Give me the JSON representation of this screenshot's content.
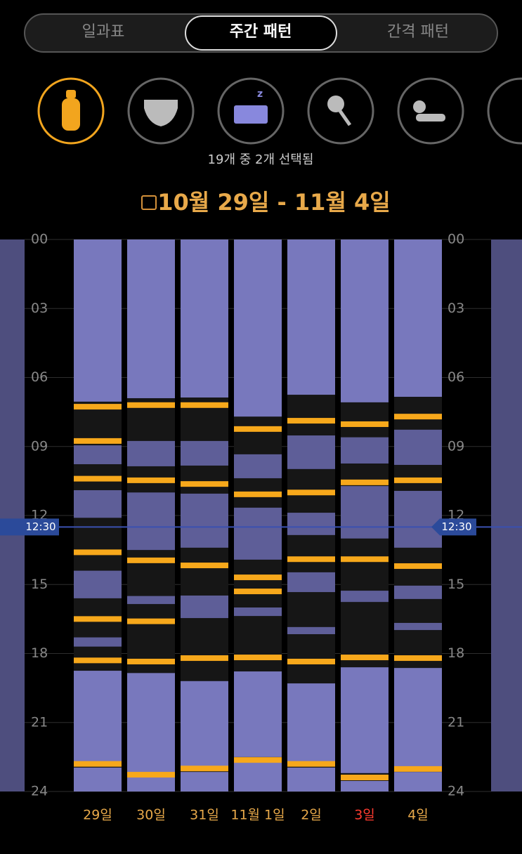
{
  "tabs": {
    "items": [
      "일과표",
      "주간 패턴",
      "간격 패턴"
    ],
    "selected": 1
  },
  "selection_note": "19개 중 2개 선택됨",
  "date_range": "10월 29일 - 11월 4일",
  "chart_data": {
    "type": "bar",
    "ylim": [
      0,
      24
    ],
    "yticks": [
      {
        "value": 0,
        "label": "00"
      },
      {
        "value": 3,
        "label": "03"
      },
      {
        "value": 6,
        "label": "06"
      },
      {
        "value": 9,
        "label": "09"
      },
      {
        "value": 12,
        "label": "12"
      },
      {
        "value": 15,
        "label": "15"
      },
      {
        "value": 18,
        "label": "18"
      },
      {
        "value": 21,
        "label": "21"
      },
      {
        "value": 24,
        "label": "24"
      }
    ],
    "grid": true,
    "colors": {
      "sleep": "#7878bd",
      "nap": "#5e5e98",
      "feed": "#f7a81b",
      "background": "#161616"
    },
    "current_time": {
      "value": 12.5,
      "label": "12:30"
    },
    "days": [
      {
        "label": "29일",
        "color": "#e8a94a",
        "sleeps": [
          [
            0,
            7.05
          ],
          [
            18.75,
            22.8
          ],
          [
            22.96,
            24
          ]
        ],
        "naps": [
          [
            8.95,
            9.77
          ],
          [
            10.9,
            12.1
          ],
          [
            14.4,
            15.6
          ],
          [
            17.3,
            17.7
          ]
        ],
        "feeds": [
          7.27,
          8.76,
          10.4,
          13.6,
          16.5,
          18.3,
          22.8
        ]
      },
      {
        "label": "30일",
        "color": "#e8a94a",
        "sleeps": [
          [
            0,
            6.9
          ],
          [
            18.85,
            23.2
          ],
          [
            23.35,
            24
          ]
        ],
        "naps": [
          [
            8.76,
            9.86
          ],
          [
            11,
            13.5
          ],
          [
            15.5,
            15.85
          ]
        ],
        "feeds": [
          7.2,
          10.47,
          13.95,
          16.6,
          18.35,
          23.27
        ]
      },
      {
        "label": "31일",
        "color": "#e8a94a",
        "sleeps": [
          [
            0,
            6.87
          ],
          [
            19.2,
            22.93
          ],
          [
            23.15,
            24
          ]
        ],
        "naps": [
          [
            8.76,
            9.83
          ],
          [
            11.05,
            13.4
          ],
          [
            15.48,
            16.46
          ]
        ],
        "feeds": [
          7.2,
          10.63,
          14.17,
          18.2,
          23
        ]
      },
      {
        "label": "11월 1일",
        "color": "#e8a94a",
        "sleeps": [
          [
            0,
            7.7
          ],
          [
            18.78,
            22.5
          ],
          [
            22.72,
            24
          ]
        ],
        "naps": [
          [
            9.34,
            10.38
          ],
          [
            11.66,
            13.92
          ],
          [
            16,
            16.37
          ]
        ],
        "feeds": [
          8.24,
          11.08,
          14.69,
          15.3,
          18.17,
          22.63
        ]
      },
      {
        "label": "2일",
        "color": "#e8a94a",
        "sleeps": [
          [
            0,
            6.75
          ],
          [
            19.3,
            22.75
          ],
          [
            22.96,
            24
          ]
        ],
        "naps": [
          [
            8.52,
            9.98
          ],
          [
            11.88,
            12.85
          ],
          [
            14.47,
            15.33
          ],
          [
            16.85,
            17.16
          ]
        ],
        "feeds": [
          7.88,
          11,
          13.9,
          18.35,
          22.8
        ]
      },
      {
        "label": "3일",
        "color": "#ff3b30",
        "sleeps": [
          [
            0,
            7.08
          ],
          [
            18.6,
            23.2
          ],
          [
            23.54,
            24
          ]
        ],
        "naps": [
          [
            8.6,
            9.74
          ],
          [
            10.72,
            13
          ],
          [
            15.27,
            15.76
          ]
        ],
        "feeds": [
          8.03,
          10.56,
          13.9,
          18.17,
          23.39
        ]
      },
      {
        "label": "4일",
        "color": "#e8a94a",
        "sleeps": [
          [
            0,
            6.84
          ],
          [
            18.63,
            22.96
          ],
          [
            23.15,
            24
          ]
        ],
        "naps": [
          [
            8.27,
            9.8
          ],
          [
            10.93,
            13.4
          ],
          [
            15.05,
            15.63
          ],
          [
            16.67,
            16.98
          ]
        ],
        "feeds": [
          7.7,
          10.47,
          14.2,
          18.2,
          23.02
        ]
      }
    ]
  }
}
